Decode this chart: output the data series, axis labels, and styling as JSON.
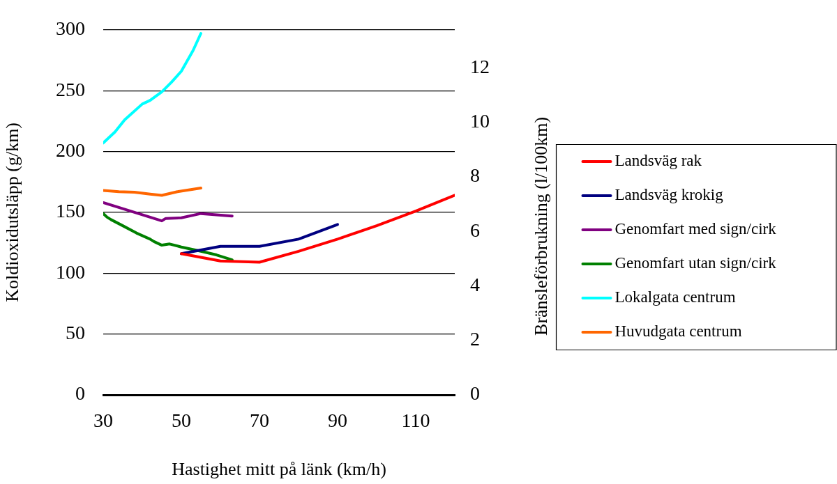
{
  "chart_data": {
    "type": "line",
    "xlabel": "Hastighet mitt på länk (km/h)",
    "ylabel": "Koldioxidutsläpp (g/km)",
    "y2label": "Bränsleförbrukning (l/100km)",
    "xlim": [
      30,
      120
    ],
    "xticks": [
      30,
      50,
      70,
      90,
      110
    ],
    "ylim": [
      0,
      300
    ],
    "yticks": [
      0,
      50,
      100,
      150,
      200,
      250,
      300
    ],
    "y2lim": [
      0,
      13.4
    ],
    "y2ticks": [
      0,
      2,
      4,
      6,
      8,
      10,
      12
    ],
    "grid": "y",
    "legend": "right",
    "line_style": "solid",
    "series": [
      {
        "name": "Landsväg rak",
        "color": "#ff0000",
        "x": [
          50,
          60,
          70,
          80,
          90,
          100,
          110,
          120
        ],
        "values": [
          116,
          110,
          109,
          118,
          128,
          139,
          151,
          164
        ]
      },
      {
        "name": "Landsväg krokig",
        "color": "#000080",
        "x": [
          50,
          60,
          70,
          80,
          90
        ],
        "values": [
          116,
          122,
          122,
          128,
          140
        ]
      },
      {
        "name": "Genomfart med sign/cirk",
        "color": "#800080",
        "x": [
          30,
          35,
          40,
          45,
          46,
          50,
          55,
          63
        ],
        "values": [
          158,
          153,
          148,
          143,
          145,
          145.5,
          149,
          147
        ]
      },
      {
        "name": "Genomfart utan sign/cirk",
        "color": "#008000",
        "x": [
          30,
          31,
          32,
          35,
          38.5,
          42,
          43,
          45,
          47,
          50,
          55,
          59,
          63
        ],
        "values": [
          149,
          146,
          144,
          139,
          133,
          128,
          126,
          123,
          124,
          121.5,
          118,
          115,
          111
        ]
      },
      {
        "name": "Lokalgata centrum",
        "color": "#00ffff",
        "x": [
          30,
          33,
          35.5,
          40,
          42,
          45,
          47.5,
          50,
          53,
          55
        ],
        "values": [
          207,
          216,
          226,
          239,
          242,
          249,
          257,
          266,
          283,
          297
        ]
      },
      {
        "name": "Huvudgata centrum",
        "color": "#ff6600",
        "x": [
          30,
          34,
          38,
          42,
          45,
          49,
          55
        ],
        "values": [
          168,
          167,
          166.5,
          165,
          164,
          167,
          170
        ]
      }
    ]
  }
}
